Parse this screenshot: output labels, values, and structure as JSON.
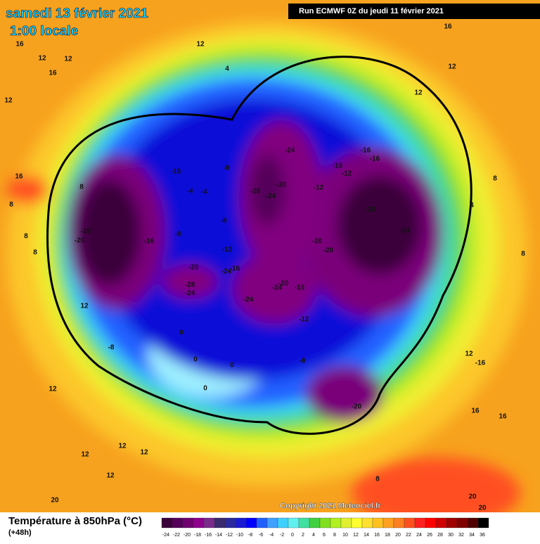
{
  "header": {
    "date": "samedi 13 février 2021",
    "time": "1:00 locale",
    "run": "Run ECMWF 0Z du jeudi 11 février 2021"
  },
  "footer": {
    "title": "Température à 850hPa (°C)",
    "subtitle": "(+48h)",
    "copyright": "Copyright 2021 Meteociel.fr"
  },
  "legend": {
    "ticks": [
      -24,
      -22,
      -20,
      -18,
      -16,
      -14,
      -12,
      -10,
      -8,
      -6,
      -4,
      -2,
      0,
      2,
      4,
      6,
      8,
      10,
      12,
      14,
      16,
      18,
      20,
      22,
      24,
      26,
      28,
      30,
      32,
      34,
      36
    ],
    "colors": [
      "#3a003a",
      "#55005a",
      "#700070",
      "#8c008c",
      "#7a2a8a",
      "#3a2a6e",
      "#2a2a9e",
      "#1a1ad0",
      "#0000ff",
      "#2060ff",
      "#3fa0ff",
      "#40d0ff",
      "#60f0f0",
      "#40e0a0",
      "#40d040",
      "#80e020",
      "#b0f020",
      "#e0f030",
      "#ffff30",
      "#ffe030",
      "#ffc020",
      "#ffa020",
      "#ff8020",
      "#ff5020",
      "#ff2020",
      "#ff0000",
      "#d00000",
      "#a00000",
      "#800000",
      "#500000",
      "#000000"
    ]
  },
  "contour_labels": [
    "16",
    "12",
    "12",
    "16",
    "12",
    "12",
    "4",
    "16",
    "12",
    "12",
    "-24",
    "-16",
    "-16",
    "-16",
    "-12",
    "-16",
    "-8",
    "-4",
    "-4",
    "-28",
    "-20",
    "-24",
    "-12",
    "-28",
    "-24",
    "-20",
    "-20",
    "-28",
    "-20",
    "-16",
    "-8",
    "-8",
    "-12",
    "-20",
    "-24",
    "-16",
    "-28",
    "-24",
    "-24",
    "-20",
    "-16",
    "-24",
    "-12",
    "0",
    "-8",
    "-8",
    "0",
    "0",
    "0",
    "-20",
    "16",
    "8",
    "8",
    "8",
    "12",
    "12",
    "8",
    "4",
    "8",
    "12",
    "-16",
    "16",
    "16",
    "12",
    "12",
    "12",
    "12",
    "20",
    "20",
    "20",
    "8",
    "8"
  ]
}
